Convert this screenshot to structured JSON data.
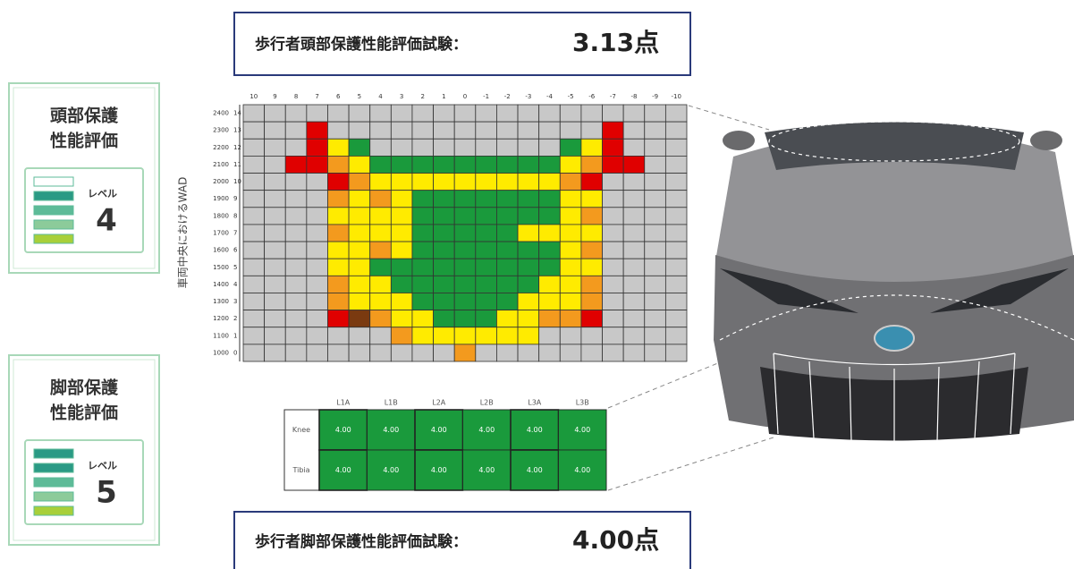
{
  "head_test": {
    "label": "歩行者頭部保護性能評価試験：",
    "score": "3.13点"
  },
  "leg_test": {
    "label": "歩行者脚部保護性能評価試験：",
    "score": "4.00点"
  },
  "head_panel": {
    "title": [
      "頭部保護",
      "性能評価"
    ],
    "level_label": "レベル",
    "level": "4",
    "bar_colors": [
      "#ffffff",
      "#2a9a85",
      "#5dbb98",
      "#8ccb9a",
      "#a8cf3a"
    ]
  },
  "leg_panel": {
    "title": [
      "脚部保護",
      "性能評価"
    ],
    "level_label": "レベル",
    "level": "5",
    "bar_colors": [
      "#2a9a85",
      "#2a9a85",
      "#5dbb98",
      "#8ccb9a",
      "#a8cf3a"
    ]
  },
  "head_grid": {
    "axis_label": "車両中央におけるWAD",
    "columns": [
      "10",
      "9",
      "8",
      "7",
      "6",
      "5",
      "4",
      "3",
      "2",
      "1",
      "0",
      "-1",
      "-2",
      "-3",
      "-4",
      "-5",
      "-6",
      "-7",
      "-8",
      "-9",
      "-10"
    ],
    "rows": [
      {
        "wad": "2400",
        "index": "14",
        "cells": [
          "#c8c8c8",
          "#c8c8c8",
          "#c8c8c8",
          "#c8c8c8",
          "#c8c8c8",
          "#c8c8c8",
          "#c8c8c8",
          "#c8c8c8",
          "#c8c8c8",
          "#c8c8c8",
          "#c8c8c8",
          "#c8c8c8",
          "#c8c8c8",
          "#c8c8c8",
          "#c8c8c8",
          "#c8c8c8",
          "#c8c8c8",
          "#c8c8c8",
          "#c8c8c8",
          "#c8c8c8",
          "#c8c8c8"
        ]
      },
      {
        "wad": "2300",
        "index": "13",
        "cells": [
          "#c8c8c8",
          "#c8c8c8",
          "#c8c8c8",
          "#e00000",
          "#c8c8c8",
          "#c8c8c8",
          "#c8c8c8",
          "#c8c8c8",
          "#c8c8c8",
          "#c8c8c8",
          "#c8c8c8",
          "#c8c8c8",
          "#c8c8c8",
          "#c8c8c8",
          "#c8c8c8",
          "#c8c8c8",
          "#c8c8c8",
          "#e00000",
          "#c8c8c8",
          "#c8c8c8",
          "#c8c8c8"
        ]
      },
      {
        "wad": "2200",
        "index": "12",
        "cells": [
          "#c8c8c8",
          "#c8c8c8",
          "#c8c8c8",
          "#e00000",
          "#ffeb00",
          "#1a9a3c",
          "#c8c8c8",
          "#c8c8c8",
          "#c8c8c8",
          "#c8c8c8",
          "#c8c8c8",
          "#c8c8c8",
          "#c8c8c8",
          "#c8c8c8",
          "#c8c8c8",
          "#1a9a3c",
          "#ffeb00",
          "#e00000",
          "#c8c8c8",
          "#c8c8c8",
          "#c8c8c8"
        ]
      },
      {
        "wad": "2100",
        "index": "11",
        "cells": [
          "#c8c8c8",
          "#c8c8c8",
          "#e00000",
          "#e00000",
          "#f39a1e",
          "#ffeb00",
          "#1a9a3c",
          "#1a9a3c",
          "#1a9a3c",
          "#1a9a3c",
          "#1a9a3c",
          "#1a9a3c",
          "#1a9a3c",
          "#1a9a3c",
          "#1a9a3c",
          "#ffeb00",
          "#f39a1e",
          "#e00000",
          "#e00000",
          "#c8c8c8",
          "#c8c8c8"
        ]
      },
      {
        "wad": "2000",
        "index": "10",
        "cells": [
          "#c8c8c8",
          "#c8c8c8",
          "#c8c8c8",
          "#c8c8c8",
          "#e00000",
          "#f39a1e",
          "#ffeb00",
          "#ffeb00",
          "#ffeb00",
          "#ffeb00",
          "#ffeb00",
          "#ffeb00",
          "#ffeb00",
          "#ffeb00",
          "#ffeb00",
          "#f39a1e",
          "#e00000",
          "#c8c8c8",
          "#c8c8c8",
          "#c8c8c8",
          "#c8c8c8"
        ]
      },
      {
        "wad": "1900",
        "index": "9",
        "cells": [
          "#c8c8c8",
          "#c8c8c8",
          "#c8c8c8",
          "#c8c8c8",
          "#f39a1e",
          "#ffeb00",
          "#f39a1e",
          "#ffeb00",
          "#1a9a3c",
          "#1a9a3c",
          "#1a9a3c",
          "#1a9a3c",
          "#1a9a3c",
          "#1a9a3c",
          "#1a9a3c",
          "#ffeb00",
          "#ffeb00",
          "#c8c8c8",
          "#c8c8c8",
          "#c8c8c8",
          "#c8c8c8"
        ]
      },
      {
        "wad": "1800",
        "index": "8",
        "cells": [
          "#c8c8c8",
          "#c8c8c8",
          "#c8c8c8",
          "#c8c8c8",
          "#ffeb00",
          "#ffeb00",
          "#ffeb00",
          "#ffeb00",
          "#1a9a3c",
          "#1a9a3c",
          "#1a9a3c",
          "#1a9a3c",
          "#1a9a3c",
          "#1a9a3c",
          "#1a9a3c",
          "#ffeb00",
          "#f39a1e",
          "#c8c8c8",
          "#c8c8c8",
          "#c8c8c8",
          "#c8c8c8"
        ]
      },
      {
        "wad": "1700",
        "index": "7",
        "cells": [
          "#c8c8c8",
          "#c8c8c8",
          "#c8c8c8",
          "#c8c8c8",
          "#f39a1e",
          "#ffeb00",
          "#ffeb00",
          "#ffeb00",
          "#1a9a3c",
          "#1a9a3c",
          "#1a9a3c",
          "#1a9a3c",
          "#1a9a3c",
          "#ffeb00",
          "#ffeb00",
          "#ffeb00",
          "#ffeb00",
          "#c8c8c8",
          "#c8c8c8",
          "#c8c8c8",
          "#c8c8c8"
        ]
      },
      {
        "wad": "1600",
        "index": "6",
        "cells": [
          "#c8c8c8",
          "#c8c8c8",
          "#c8c8c8",
          "#c8c8c8",
          "#ffeb00",
          "#ffeb00",
          "#f39a1e",
          "#ffeb00",
          "#1a9a3c",
          "#1a9a3c",
          "#1a9a3c",
          "#1a9a3c",
          "#1a9a3c",
          "#1a9a3c",
          "#1a9a3c",
          "#ffeb00",
          "#f39a1e",
          "#c8c8c8",
          "#c8c8c8",
          "#c8c8c8",
          "#c8c8c8"
        ]
      },
      {
        "wad": "1500",
        "index": "5",
        "cells": [
          "#c8c8c8",
          "#c8c8c8",
          "#c8c8c8",
          "#c8c8c8",
          "#ffeb00",
          "#ffeb00",
          "#1a9a3c",
          "#1a9a3c",
          "#1a9a3c",
          "#1a9a3c",
          "#1a9a3c",
          "#1a9a3c",
          "#1a9a3c",
          "#1a9a3c",
          "#1a9a3c",
          "#ffeb00",
          "#ffeb00",
          "#c8c8c8",
          "#c8c8c8",
          "#c8c8c8",
          "#c8c8c8"
        ]
      },
      {
        "wad": "1400",
        "index": "4",
        "cells": [
          "#c8c8c8",
          "#c8c8c8",
          "#c8c8c8",
          "#c8c8c8",
          "#f39a1e",
          "#ffeb00",
          "#ffeb00",
          "#1a9a3c",
          "#1a9a3c",
          "#1a9a3c",
          "#1a9a3c",
          "#1a9a3c",
          "#1a9a3c",
          "#1a9a3c",
          "#ffeb00",
          "#ffeb00",
          "#f39a1e",
          "#c8c8c8",
          "#c8c8c8",
          "#c8c8c8",
          "#c8c8c8"
        ]
      },
      {
        "wad": "1300",
        "index": "3",
        "cells": [
          "#c8c8c8",
          "#c8c8c8",
          "#c8c8c8",
          "#c8c8c8",
          "#f39a1e",
          "#ffeb00",
          "#ffeb00",
          "#ffeb00",
          "#1a9a3c",
          "#1a9a3c",
          "#1a9a3c",
          "#1a9a3c",
          "#1a9a3c",
          "#ffeb00",
          "#ffeb00",
          "#ffeb00",
          "#f39a1e",
          "#c8c8c8",
          "#c8c8c8",
          "#c8c8c8",
          "#c8c8c8"
        ]
      },
      {
        "wad": "1200",
        "index": "2",
        "cells": [
          "#c8c8c8",
          "#c8c8c8",
          "#c8c8c8",
          "#c8c8c8",
          "#e00000",
          "#7a3a10",
          "#f39a1e",
          "#ffeb00",
          "#ffeb00",
          "#1a9a3c",
          "#1a9a3c",
          "#1a9a3c",
          "#ffeb00",
          "#ffeb00",
          "#f39a1e",
          "#f39a1e",
          "#e00000",
          "#c8c8c8",
          "#c8c8c8",
          "#c8c8c8",
          "#c8c8c8"
        ]
      },
      {
        "wad": "1100",
        "index": "1",
        "cells": [
          "#c8c8c8",
          "#c8c8c8",
          "#c8c8c8",
          "#c8c8c8",
          "#c8c8c8",
          "#c8c8c8",
          "#c8c8c8",
          "#f39a1e",
          "#ffeb00",
          "#ffeb00",
          "#ffeb00",
          "#ffeb00",
          "#ffeb00",
          "#ffeb00",
          "#c8c8c8",
          "#c8c8c8",
          "#c8c8c8",
          "#c8c8c8",
          "#c8c8c8",
          "#c8c8c8",
          "#c8c8c8"
        ]
      },
      {
        "wad": "1000",
        "index": "0",
        "cells": [
          "#c8c8c8",
          "#c8c8c8",
          "#c8c8c8",
          "#c8c8c8",
          "#c8c8c8",
          "#c8c8c8",
          "#c8c8c8",
          "#c8c8c8",
          "#c8c8c8",
          "#c8c8c8",
          "#f39a1e",
          "#c8c8c8",
          "#c8c8c8",
          "#c8c8c8",
          "#c8c8c8",
          "#c8c8c8",
          "#c8c8c8",
          "#c8c8c8",
          "#c8c8c8",
          "#c8c8c8",
          "#c8c8c8"
        ]
      }
    ]
  },
  "leg_table": {
    "columns": [
      "L1A",
      "L1B",
      "L2A",
      "L2B",
      "L3A",
      "L3B"
    ],
    "cell_color": "#1a9a3c",
    "rows": [
      {
        "label": "Knee",
        "values": [
          "4.00",
          "4.00",
          "4.00",
          "4.00",
          "4.00",
          "4.00"
        ]
      },
      {
        "label": "Tibia",
        "values": [
          "4.00",
          "4.00",
          "4.00",
          "4.00",
          "4.00",
          "4.00"
        ]
      }
    ]
  }
}
